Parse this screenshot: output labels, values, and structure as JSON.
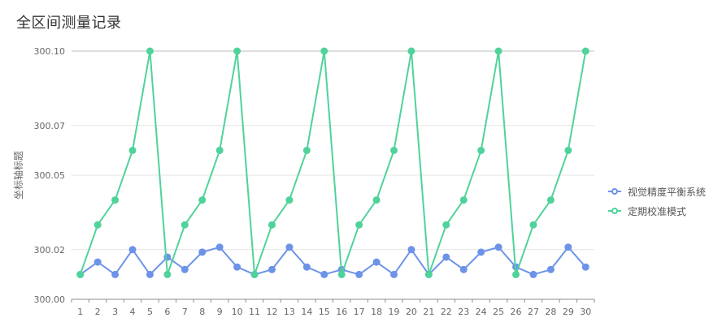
{
  "page_title": "全区间测量记录",
  "colors": {
    "series_1": "#6d93e8",
    "series_2": "#4fd39a",
    "grid": "#e6e6e6",
    "top_line": "#bfbfbf",
    "axis": "#8c8c8c",
    "text": "#666666"
  },
  "chart_data": {
    "type": "line",
    "title": "全区间测量记录",
    "xlabel": "",
    "ylabel": "坐标轴标题",
    "x": [
      1,
      2,
      3,
      4,
      5,
      6,
      7,
      8,
      9,
      10,
      11,
      12,
      13,
      14,
      15,
      16,
      17,
      18,
      19,
      20,
      21,
      22,
      23,
      24,
      25,
      26,
      27,
      28,
      29,
      30
    ],
    "ylim": [
      300.0,
      300.1
    ],
    "yticks": [
      300.0,
      300.02,
      300.05,
      300.07,
      300.1
    ],
    "ytick_labels": [
      "300.00",
      "300.02",
      "300.05",
      "300.07",
      "300.10"
    ],
    "series": [
      {
        "name": "视觉精度平衡系统",
        "values": [
          300.01,
          300.015,
          300.01,
          300.02,
          300.01,
          300.017,
          300.012,
          300.019,
          300.021,
          300.013,
          300.01,
          300.012,
          300.021,
          300.013,
          300.01,
          300.012,
          300.01,
          300.015,
          300.01,
          300.02,
          300.01,
          300.017,
          300.012,
          300.019,
          300.021,
          300.013,
          300.01,
          300.012,
          300.021,
          300.013
        ]
      },
      {
        "name": "定期校准模式",
        "values": [
          300.01,
          300.03,
          300.04,
          300.06,
          300.1,
          300.01,
          300.03,
          300.04,
          300.06,
          300.1,
          300.01,
          300.03,
          300.04,
          300.06,
          300.1,
          300.01,
          300.03,
          300.04,
          300.06,
          300.1,
          300.01,
          300.03,
          300.04,
          300.06,
          300.1,
          300.01,
          300.03,
          300.04,
          300.06,
          300.1
        ]
      }
    ],
    "grid": true,
    "legend_position": "right"
  }
}
